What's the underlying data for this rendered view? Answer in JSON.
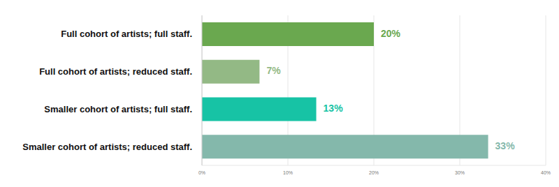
{
  "chart_data": {
    "type": "bar",
    "orientation": "horizontal",
    "categories": [
      "Full cohort of artists; full staff.",
      "Full cohort of artists; reduced staff.",
      "Smaller cohort of artists; full staff.",
      "Smaller cohort of artists; reduced staff."
    ],
    "values": [
      20,
      6.7,
      13.3,
      33.3
    ],
    "value_labels": [
      "20%",
      "7%",
      "13%",
      "33%"
    ],
    "colors": [
      "#6aa84f",
      "#93b985",
      "#17c3a5",
      "#84b8ab"
    ],
    "xlim": [
      0,
      40
    ],
    "xticks": [
      {
        "value": 0,
        "label": "0%"
      },
      {
        "value": 10,
        "label": "10%"
      },
      {
        "value": 20,
        "label": "20%"
      },
      {
        "value": 30,
        "label": "30%"
      },
      {
        "value": 40,
        "label": "40%"
      }
    ],
    "grid": true,
    "data_labels": true
  }
}
